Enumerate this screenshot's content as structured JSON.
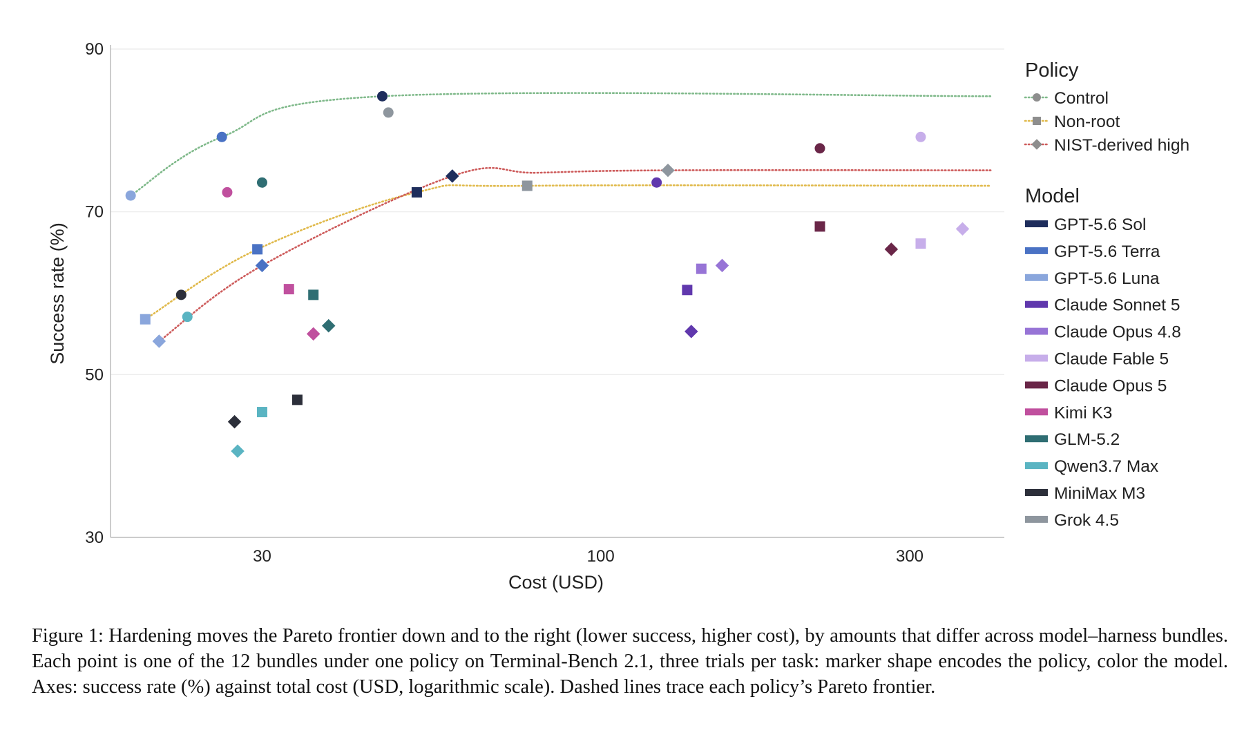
{
  "chart_data": {
    "type": "scatter",
    "title": "",
    "xlabel": "Cost (USD)",
    "ylabel": "Success rate (%)",
    "x_scale": "log",
    "xlim": [
      17.5,
      420
    ],
    "ylim": [
      30,
      90
    ],
    "x_ticks": [
      30,
      100,
      300
    ],
    "y_ticks": [
      30,
      50,
      70,
      90
    ],
    "grid": "horizontal",
    "legend_position": "right",
    "policy_legend": {
      "title": "Policy",
      "items": [
        {
          "key": "control",
          "name": "Control",
          "marker": "circle",
          "line_color": "#7fb98a"
        },
        {
          "key": "nonroot",
          "name": "Non-root",
          "marker": "square",
          "line_color": "#e0b94a"
        },
        {
          "key": "nist",
          "name": "NIST-derived high",
          "marker": "diamond",
          "line_color": "#cd5a5a"
        }
      ]
    },
    "model_legend": {
      "title": "Model",
      "items": [
        {
          "key": "sol",
          "name": "GPT-5.6 Sol",
          "color": "#1e2d5c"
        },
        {
          "key": "terra",
          "name": "GPT-5.6 Terra",
          "color": "#4a72c4"
        },
        {
          "key": "luna",
          "name": "GPT-5.6 Luna",
          "color": "#8aa6dc"
        },
        {
          "key": "sonnet5",
          "name": "Claude Sonnet 5",
          "color": "#6038ad"
        },
        {
          "key": "opus48",
          "name": "Claude Opus 4.8",
          "color": "#9774d6"
        },
        {
          "key": "fable5",
          "name": "Claude Fable 5",
          "color": "#c7aeea"
        },
        {
          "key": "opus5",
          "name": "Claude Opus 5",
          "color": "#6a2648"
        },
        {
          "key": "kimi",
          "name": "Kimi K3",
          "color": "#c0509e"
        },
        {
          "key": "glm",
          "name": "GLM-5.2",
          "color": "#2f6e73"
        },
        {
          "key": "qwen",
          "name": "Qwen3.7 Max",
          "color": "#5ab4c2"
        },
        {
          "key": "minimax",
          "name": "MiniMax M3",
          "color": "#2c2f3a"
        },
        {
          "key": "grok",
          "name": "Grok 4.5",
          "color": "#8e969e"
        }
      ]
    },
    "points": [
      {
        "model": "sol",
        "policy": "control",
        "x": 46,
        "y": 84.2
      },
      {
        "model": "sol",
        "policy": "nonroot",
        "x": 52,
        "y": 72.4
      },
      {
        "model": "sol",
        "policy": "nist",
        "x": 59,
        "y": 74.4
      },
      {
        "model": "terra",
        "policy": "control",
        "x": 26,
        "y": 79.2
      },
      {
        "model": "terra",
        "policy": "nonroot",
        "x": 29.5,
        "y": 65.4
      },
      {
        "model": "terra",
        "policy": "nist",
        "x": 30,
        "y": 63.4
      },
      {
        "model": "luna",
        "policy": "control",
        "x": 18.8,
        "y": 72.0
      },
      {
        "model": "luna",
        "policy": "nonroot",
        "x": 19.8,
        "y": 56.8
      },
      {
        "model": "luna",
        "policy": "nist",
        "x": 20.8,
        "y": 54.1
      },
      {
        "model": "sonnet5",
        "policy": "control",
        "x": 122,
        "y": 73.6
      },
      {
        "model": "sonnet5",
        "policy": "nonroot",
        "x": 136,
        "y": 60.4
      },
      {
        "model": "sonnet5",
        "policy": "nist",
        "x": 138,
        "y": 55.3
      },
      {
        "model": "opus48",
        "policy": "nonroot",
        "x": 143,
        "y": 63.0
      },
      {
        "model": "opus48",
        "policy": "nist",
        "x": 154,
        "y": 63.4
      },
      {
        "model": "fable5",
        "policy": "control",
        "x": 312,
        "y": 79.2
      },
      {
        "model": "fable5",
        "policy": "nonroot",
        "x": 312,
        "y": 66.1
      },
      {
        "model": "fable5",
        "policy": "nist",
        "x": 362,
        "y": 67.9
      },
      {
        "model": "opus5",
        "policy": "control",
        "x": 218,
        "y": 77.8
      },
      {
        "model": "opus5",
        "policy": "nonroot",
        "x": 218,
        "y": 68.2
      },
      {
        "model": "opus5",
        "policy": "nist",
        "x": 281,
        "y": 65.4
      },
      {
        "model": "kimi",
        "policy": "control",
        "x": 26.5,
        "y": 72.4
      },
      {
        "model": "kimi",
        "policy": "nonroot",
        "x": 33,
        "y": 60.5
      },
      {
        "model": "kimi",
        "policy": "nist",
        "x": 36,
        "y": 55.0
      },
      {
        "model": "glm",
        "policy": "control",
        "x": 30,
        "y": 73.6
      },
      {
        "model": "glm",
        "policy": "nonroot",
        "x": 36,
        "y": 59.8
      },
      {
        "model": "glm",
        "policy": "nist",
        "x": 38,
        "y": 56.0
      },
      {
        "model": "qwen",
        "policy": "control",
        "x": 23,
        "y": 57.1
      },
      {
        "model": "qwen",
        "policy": "nonroot",
        "x": 30,
        "y": 45.4
      },
      {
        "model": "qwen",
        "policy": "nist",
        "x": 27.5,
        "y": 40.6
      },
      {
        "model": "minimax",
        "policy": "control",
        "x": 22.5,
        "y": 59.8
      },
      {
        "model": "minimax",
        "policy": "nonroot",
        "x": 34,
        "y": 46.9
      },
      {
        "model": "minimax",
        "policy": "nist",
        "x": 27.2,
        "y": 44.2
      },
      {
        "model": "grok",
        "policy": "control",
        "x": 47,
        "y": 82.2
      },
      {
        "model": "grok",
        "policy": "nonroot",
        "x": 77,
        "y": 73.2
      },
      {
        "model": "grok",
        "policy": "nist",
        "x": 127,
        "y": 75.1
      }
    ],
    "frontiers": [
      {
        "policy": "control",
        "x": [
          18.8,
          26,
          46,
          400
        ],
        "y": [
          72.0,
          79.2,
          84.2,
          84.2
        ]
      },
      {
        "policy": "nonroot",
        "x": [
          19.8,
          29.5,
          52,
          77,
          400
        ],
        "y": [
          56.8,
          65.4,
          72.4,
          73.2,
          73.2
        ]
      },
      {
        "policy": "nist",
        "x": [
          20.8,
          30,
          59,
          80,
          127,
          400
        ],
        "y": [
          54.1,
          63.4,
          74.4,
          74.8,
          75.1,
          75.1
        ]
      }
    ]
  },
  "caption": "Figure 1: Hardening moves the Pareto frontier down and to the right (lower success, higher cost), by amounts that differ across model–harness bundles. Each point is one of the 12 bundles under one policy on Terminal-Bench 2.1, three trials per task: marker shape encodes the policy, color the model. Axes: success rate (%) against total cost (USD, logarithmic scale). Dashed lines trace each policy’s Pareto frontier."
}
